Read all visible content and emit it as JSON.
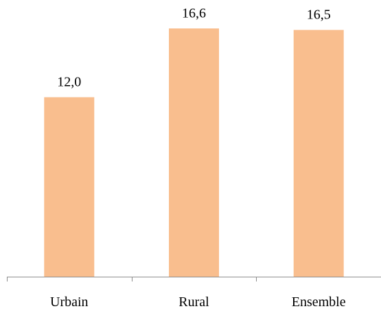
{
  "chart_data": {
    "type": "bar",
    "categories": [
      "Urbain",
      "Rural",
      "Ensemble"
    ],
    "values": [
      12.0,
      16.6,
      16.5
    ],
    "value_labels": [
      "12,0",
      "16,6",
      "16,5"
    ],
    "title": "",
    "xlabel": "",
    "ylabel": "",
    "ylim": [
      0,
      18.5
    ],
    "grid": false,
    "legend": "none",
    "bar_color": "#F9BE8E",
    "axis_color": "#8C8C8C"
  }
}
